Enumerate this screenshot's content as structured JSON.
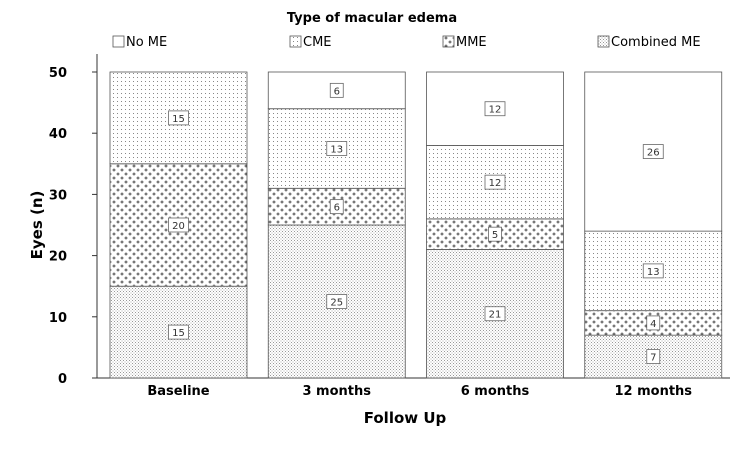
{
  "chart_data": {
    "type": "bar",
    "stacked": true,
    "title": "",
    "legend_title": "Type of macular edema",
    "legend_position": "top",
    "xlabel": "Follow Up",
    "ylabel": "Eyes (n)",
    "ylim": [
      0,
      50
    ],
    "yticks": [
      0,
      10,
      20,
      30,
      40,
      50
    ],
    "grid": false,
    "categories": [
      "Baseline",
      "3 months",
      "6 months",
      "12 months"
    ],
    "series": [
      {
        "name": "Combined ME",
        "pattern": "dense-dots",
        "values": [
          15,
          25,
          21,
          7
        ]
      },
      {
        "name": "MME",
        "pattern": "crosses",
        "values": [
          20,
          6,
          5,
          4
        ]
      },
      {
        "name": "CME",
        "pattern": "sparse-dots",
        "values": [
          15,
          13,
          12,
          13
        ]
      },
      {
        "name": "No ME",
        "pattern": "empty",
        "values": [
          0,
          6,
          12,
          26
        ]
      }
    ],
    "legend_order": [
      "No ME",
      "CME",
      "MME",
      "Combined ME"
    ]
  }
}
